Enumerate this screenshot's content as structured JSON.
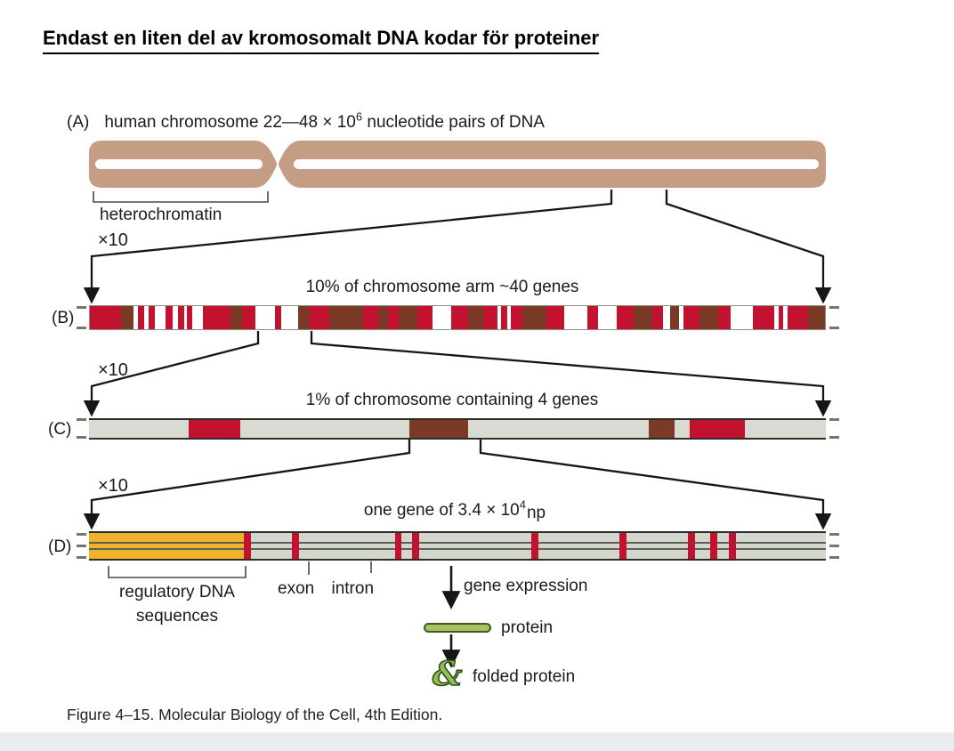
{
  "slide": {
    "title": "Endast en liten del av kromosomalt DNA kodar för proteiner",
    "caption": "Figure 4–15. Molecular Biology of the Cell, 4th Edition."
  },
  "colors": {
    "chromosome_tan": "#c59d85",
    "gene_red": "#c31230",
    "gene_brown": "#7b3a26",
    "track_gray": "#d8dbd2",
    "regulatory_yellow": "#f0b12d",
    "protein_green": "#a9c163",
    "protein_green_dark": "#3f5c1e",
    "white": "#ffffff"
  },
  "panelA": {
    "label": "(A)",
    "heading_prefix": "human chromosome 22—48 × 10",
    "heading_exponent": "6",
    "heading_suffix": " nucleotide pairs of DNA",
    "heterochromatin_label": "heterochromatin",
    "zoom_label": "×10"
  },
  "panelB": {
    "label": "(B)",
    "heading": "10% of chromosome arm ~40 genes",
    "zoom_label": "×10",
    "segments": [
      [
        "r",
        4.5
      ],
      [
        "b",
        1.8
      ],
      [
        "w",
        0.6
      ],
      [
        "r",
        1.0
      ],
      [
        "w",
        0.6
      ],
      [
        "r",
        0.9
      ],
      [
        "w",
        1.6
      ],
      [
        "r",
        1.0
      ],
      [
        "w",
        0.7
      ],
      [
        "r",
        0.9
      ],
      [
        "w",
        0.5
      ],
      [
        "r",
        0.7
      ],
      [
        "w",
        1.5
      ],
      [
        "r",
        4.0
      ],
      [
        "b",
        1.7
      ],
      [
        "r",
        2.0
      ],
      [
        "w",
        2.8
      ],
      [
        "r",
        0.9
      ],
      [
        "w",
        2.4
      ],
      [
        "b",
        1.7
      ],
      [
        "r",
        2.9
      ],
      [
        "b",
        4.8
      ],
      [
        "r",
        2.2
      ],
      [
        "b",
        1.4
      ],
      [
        "r",
        1.6
      ],
      [
        "b",
        2.7
      ],
      [
        "r",
        2.2
      ],
      [
        "w",
        2.7
      ],
      [
        "r",
        2.4
      ],
      [
        "b",
        2.3
      ],
      [
        "r",
        2.0
      ],
      [
        "w",
        0.5
      ],
      [
        "r",
        0.9
      ],
      [
        "w",
        0.5
      ],
      [
        "r",
        1.7
      ],
      [
        "b",
        3.5
      ],
      [
        "r",
        2.5
      ],
      [
        "w",
        3.4
      ],
      [
        "r",
        1.5
      ],
      [
        "w",
        2.7
      ],
      [
        "r",
        2.5
      ],
      [
        "b",
        2.7
      ],
      [
        "r",
        1.6
      ],
      [
        "w",
        1.0
      ],
      [
        "b",
        1.3
      ],
      [
        "w",
        0.6
      ],
      [
        "r",
        2.3
      ],
      [
        "b",
        2.7
      ],
      [
        "r",
        1.8
      ],
      [
        "w",
        3.3
      ],
      [
        "r",
        3.0
      ],
      [
        "w",
        0.7
      ],
      [
        "r",
        0.7
      ],
      [
        "w",
        0.6
      ],
      [
        "r",
        2.9
      ],
      [
        "b",
        2.5
      ]
    ]
  },
  "panelC": {
    "label": "(C)",
    "heading": "1% of chromosome containing 4 genes",
    "zoom_label": "×10",
    "segments": [
      [
        "g",
        13.5
      ],
      [
        "r",
        7.0
      ],
      [
        "g",
        23.0
      ],
      [
        "b",
        8.0
      ],
      [
        "g",
        24.5
      ],
      [
        "b",
        3.5
      ],
      [
        "g",
        2.0
      ],
      [
        "r",
        7.5
      ],
      [
        "g",
        11.0
      ]
    ]
  },
  "panelD": {
    "label": "(D)",
    "heading_prefix": "one gene of 3.4 × 10",
    "heading_exponent": "4",
    "heading_suffix": "np",
    "regulatory_width_pct": 21,
    "exon_width_pct": 0.95,
    "exon_positions_pct": [
      21,
      27.5,
      41.5,
      43.8,
      60,
      72,
      81.3,
      84.3,
      86.8
    ],
    "labels": {
      "regulatory_line1": "regulatory DNA",
      "regulatory_line2": "sequences",
      "exon": "exon",
      "intron": "intron",
      "gene_expression": "gene expression",
      "protein": "protein",
      "folded_protein": "folded protein",
      "folded_icon_glyph": "&"
    }
  }
}
